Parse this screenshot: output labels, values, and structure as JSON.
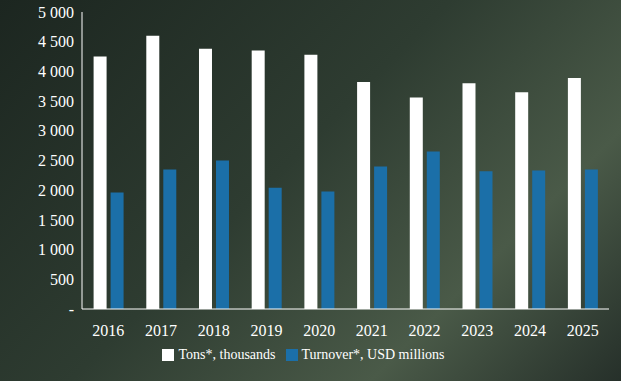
{
  "chart_data": {
    "type": "bar",
    "categories": [
      "2016",
      "2017",
      "2018",
      "2019",
      "2020",
      "2021",
      "2022",
      "2023",
      "2024",
      "2025"
    ],
    "series": [
      {
        "name": "Tons*, thousands",
        "color": "#ffffff",
        "values": [
          4250,
          4600,
          4380,
          4350,
          4280,
          3820,
          3560,
          3800,
          3650,
          3890
        ]
      },
      {
        "name": "Turnover*, USD millions",
        "color": "#1b6fa8",
        "values": [
          1960,
          2350,
          2500,
          2040,
          1980,
          2400,
          2650,
          2320,
          2330,
          2350
        ]
      }
    ],
    "ylim": [
      0,
      5000
    ],
    "yticks": [
      {
        "value": 0,
        "label": "-"
      },
      500,
      {
        "value": 1000,
        "label": "1 000"
      },
      {
        "value": 1500,
        "label": "1 500"
      },
      {
        "value": 2000,
        "label": "2 000"
      },
      {
        "value": 2500,
        "label": "2 500"
      },
      {
        "value": 3000,
        "label": "3 000"
      },
      {
        "value": 3500,
        "label": "3 500"
      },
      {
        "value": 4000,
        "label": "4 000"
      },
      {
        "value": 4500,
        "label": "4 500"
      },
      {
        "value": 5000,
        "label": "5 000"
      }
    ],
    "grid": false,
    "legend": "bottom"
  }
}
